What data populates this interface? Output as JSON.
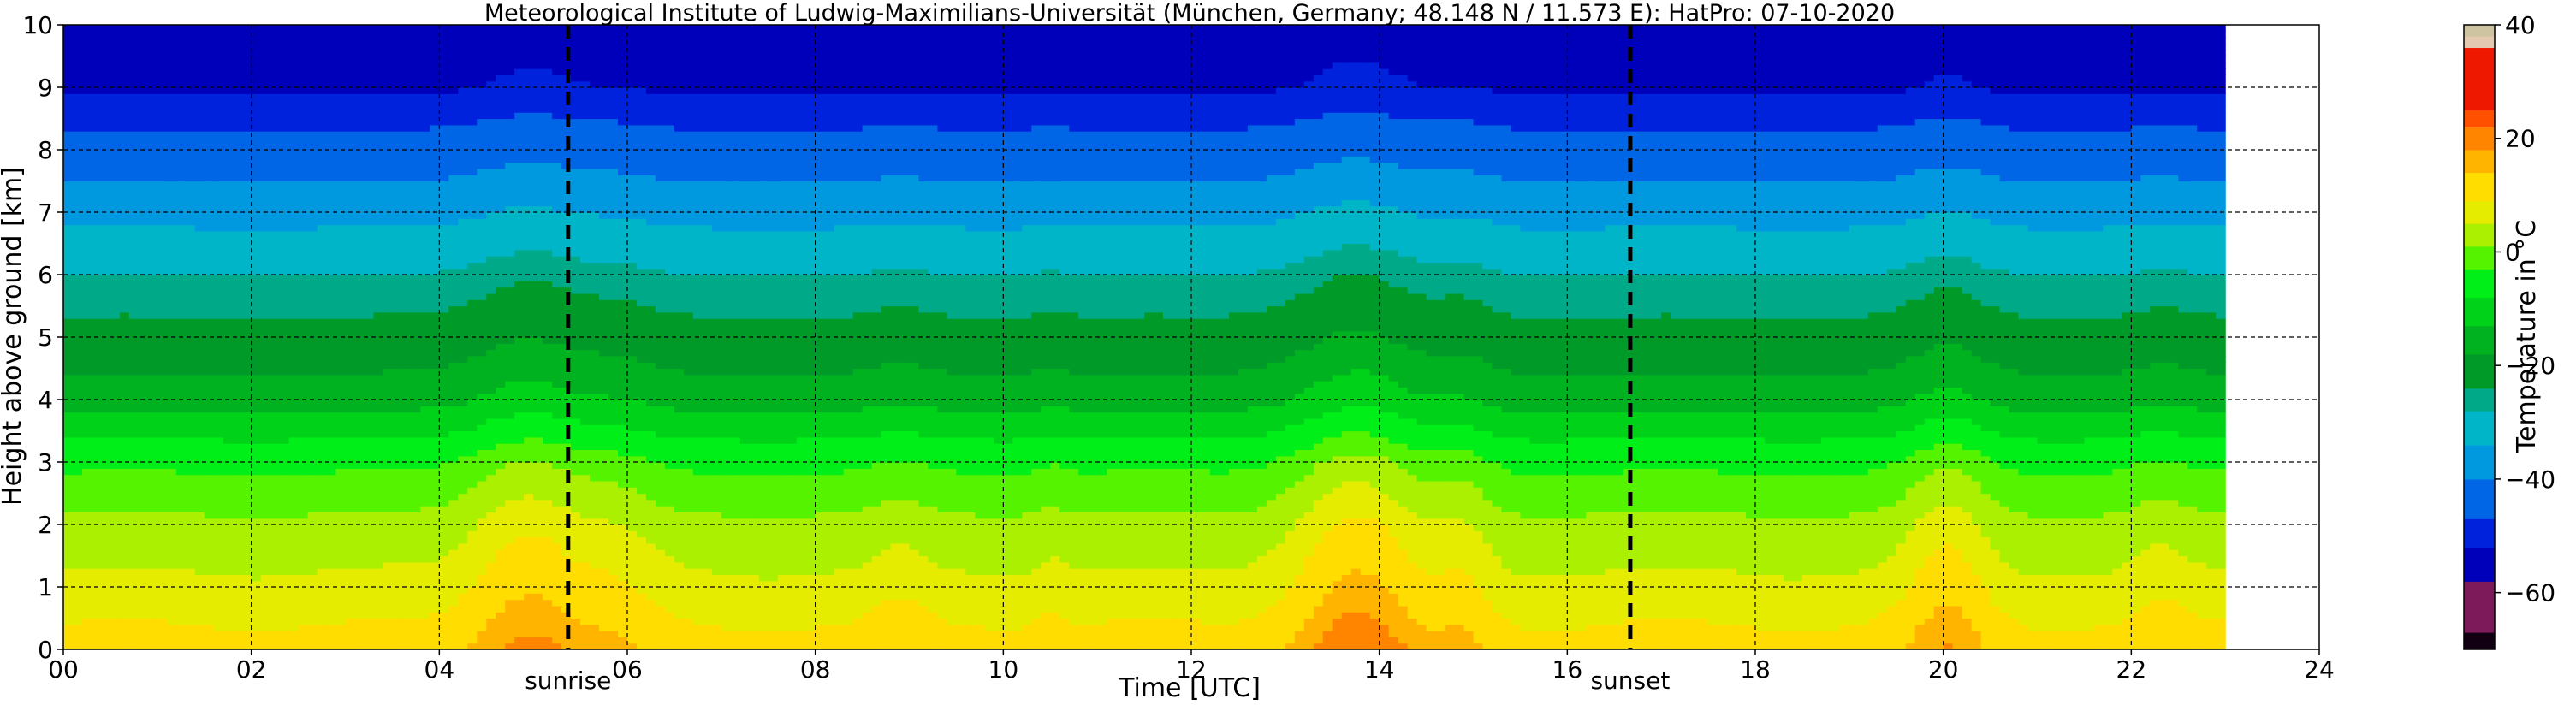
{
  "chart_data": {
    "type": "heatmap",
    "title": "Meteorological Institute of Ludwig-Maximilians-Universität (München, Germany; 48.148 N / 11.573 E):     HatPro: 07-10-2020",
    "xlabel": "Time [UTC]",
    "ylabel": "Height above ground [km]",
    "xlim": [
      0,
      24
    ],
    "ylim": [
      0,
      10
    ],
    "data_extent_x": [
      0,
      23
    ],
    "x_ticks": [
      "00",
      "02",
      "04",
      "06",
      "08",
      "10",
      "12",
      "14",
      "16",
      "18",
      "20",
      "22",
      "24"
    ],
    "x_tick_values": [
      0,
      2,
      4,
      6,
      8,
      10,
      12,
      14,
      16,
      18,
      20,
      22,
      24
    ],
    "y_ticks": [
      "0",
      "1",
      "2",
      "3",
      "4",
      "5",
      "6",
      "7",
      "8",
      "9",
      "10"
    ],
    "y_tick_values": [
      0,
      1,
      2,
      3,
      4,
      5,
      6,
      7,
      8,
      9,
      10
    ],
    "grid": true,
    "events": [
      {
        "label": "sunrise",
        "x": 5.37
      },
      {
        "label": "sunset",
        "x": 16.67
      }
    ],
    "colorbar": {
      "label": "Temperature in °C",
      "range": [
        -70,
        40
      ],
      "tick_labels": [
        "40",
        "20",
        "0",
        "−20",
        "−40",
        "−60"
      ],
      "tick_values": [
        40,
        20,
        0,
        -20,
        -40,
        -60
      ],
      "bands": [
        {
          "from": -70,
          "to": -67,
          "color": "#110011"
        },
        {
          "from": -67,
          "to": -58,
          "color": "#7d1a5a"
        },
        {
          "from": -58,
          "to": -52,
          "color": "#0000bb"
        },
        {
          "from": -52,
          "to": -47,
          "color": "#0022dd"
        },
        {
          "from": -47,
          "to": -40,
          "color": "#0066e6"
        },
        {
          "from": -40,
          "to": -34,
          "color": "#0099e0"
        },
        {
          "from": -34,
          "to": -28,
          "color": "#00b5c8"
        },
        {
          "from": -28,
          "to": -24,
          "color": "#00aa88"
        },
        {
          "from": -24,
          "to": -18,
          "color": "#009a28"
        },
        {
          "from": -18,
          "to": -13,
          "color": "#00b220"
        },
        {
          "from": -13,
          "to": -8,
          "color": "#00d21a"
        },
        {
          "from": -8,
          "to": -3,
          "color": "#00ef18"
        },
        {
          "from": -3,
          "to": 1,
          "color": "#55f300"
        },
        {
          "from": 1,
          "to": 5,
          "color": "#aaf000"
        },
        {
          "from": 5,
          "to": 9,
          "color": "#e6ec00"
        },
        {
          "from": 9,
          "to": 14,
          "color": "#ffdd00"
        },
        {
          "from": 14,
          "to": 18,
          "color": "#ffb400"
        },
        {
          "from": 18,
          "to": 22,
          "color": "#ff8400"
        },
        {
          "from": 22,
          "to": 25,
          "color": "#ff5000"
        },
        {
          "from": 25,
          "to": 36,
          "color": "#ee1800"
        },
        {
          "from": 36,
          "to": 38,
          "color": "#e3c9b0"
        },
        {
          "from": 38,
          "to": 40,
          "color": "#cfc4a2"
        }
      ]
    },
    "temperature_profile_baseline": {
      "heights_km": [
        0,
        1,
        2,
        3,
        4,
        5,
        6,
        7,
        8,
        9,
        10
      ],
      "values_c": [
        11,
        6,
        2,
        -4,
        -15,
        -22,
        -28,
        -36,
        -44,
        -53,
        -56
      ]
    },
    "warm_events": [
      {
        "t_center": 4.95,
        "t_width": 0.65,
        "amplitude_c": 9
      },
      {
        "t_center": 5.9,
        "t_width": 0.45,
        "amplitude_c": 3
      },
      {
        "t_center": 8.9,
        "t_width": 0.3,
        "amplitude_c": 2
      },
      {
        "t_center": 10.5,
        "t_width": 0.22,
        "amplitude_c": 1.5
      },
      {
        "t_center": 13.75,
        "t_width": 0.7,
        "amplitude_c": 11
      },
      {
        "t_center": 14.9,
        "t_width": 0.35,
        "amplitude_c": 4
      },
      {
        "t_center": 20.05,
        "t_width": 0.45,
        "amplitude_c": 7
      },
      {
        "t_center": 22.3,
        "t_width": 0.3,
        "amplitude_c": 2
      }
    ]
  }
}
